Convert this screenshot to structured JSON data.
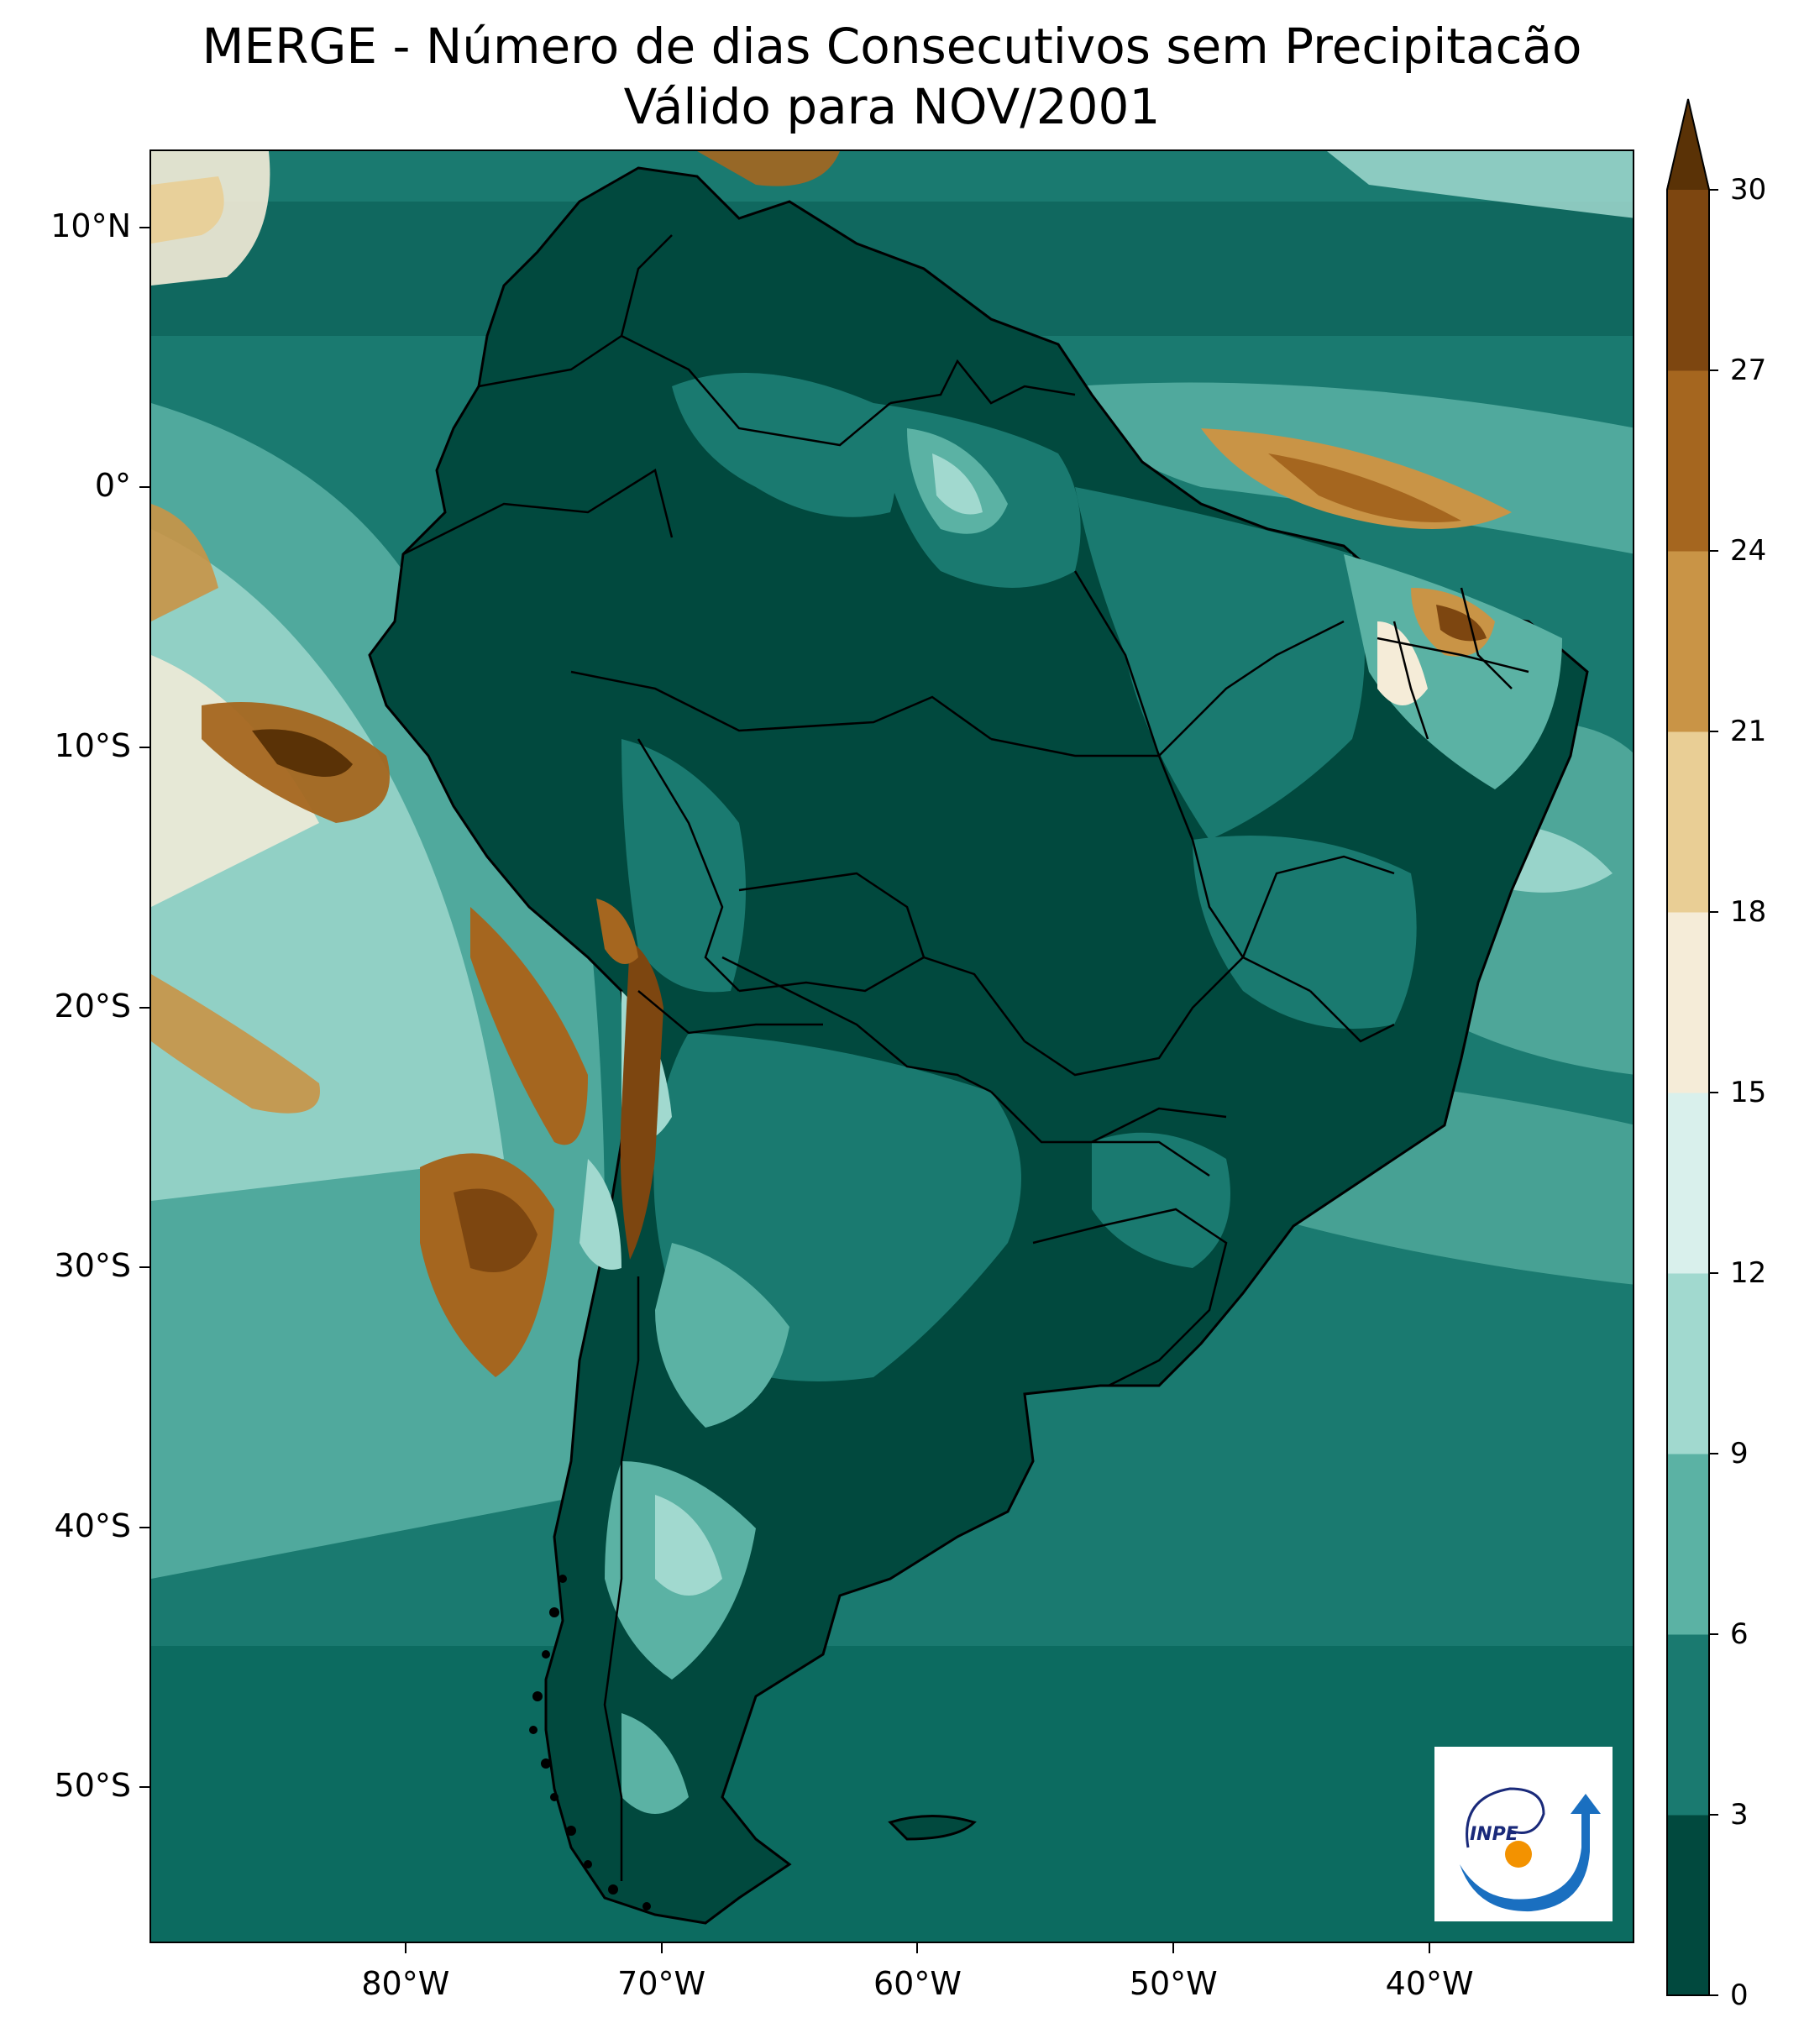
{
  "title": {
    "line1": "MERGE - Número de dias Consecutivos sem Precipitacão",
    "line2": "Válido para NOV/2001"
  },
  "axes": {
    "lat_labels": [
      "10°N",
      "0°",
      "10°S",
      "20°S",
      "30°S",
      "40°S",
      "50°S"
    ],
    "lat_values": [
      10,
      0,
      -10,
      -20,
      -30,
      -40,
      -50
    ],
    "lon_labels": [
      "80°W",
      "70°W",
      "60°W",
      "50°W",
      "40°W"
    ],
    "lon_values": [
      -80,
      -70,
      -60,
      -50,
      -40
    ],
    "lat_range": [
      -56,
      13
    ],
    "lon_range": [
      -90,
      -32
    ]
  },
  "colorbar": {
    "ticks": [
      "30",
      "27",
      "24",
      "21",
      "18",
      "15",
      "12",
      "9",
      "6",
      "3",
      "0"
    ],
    "levels": [
      0,
      3,
      6,
      9,
      12,
      15,
      18,
      21,
      24,
      27,
      30
    ],
    "colors": [
      "#01493e",
      "#1a7a70",
      "#5bb2a4",
      "#a1d9cf",
      "#d9f0ec",
      "#f5ecd8",
      "#e9ce95",
      "#c99446",
      "#a5661f",
      "#7d4610",
      "#5a3206"
    ],
    "extend": "max"
  },
  "logo": {
    "text": "INPE"
  }
}
